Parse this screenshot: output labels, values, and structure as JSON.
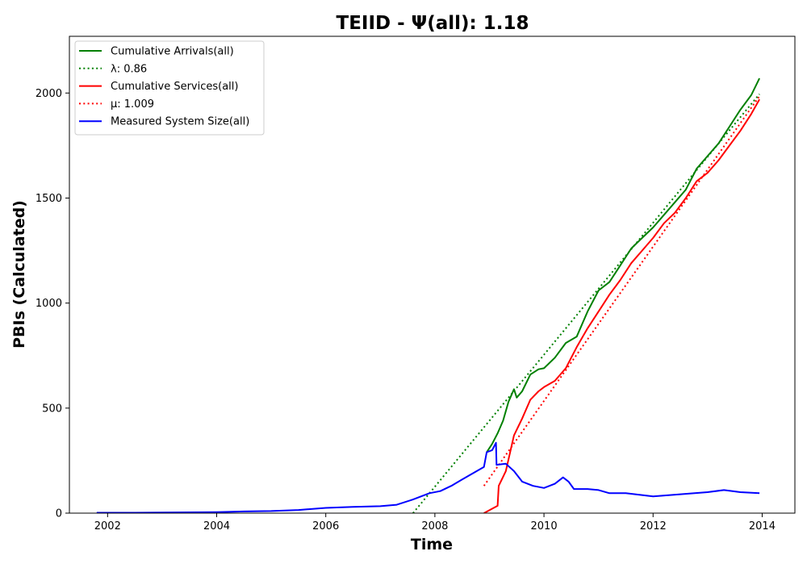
{
  "chart_data": {
    "type": "line",
    "title": "TEIID -  Ψ(all): 1.18",
    "xlabel": "Time",
    "ylabel": "PBIs (Calculated)",
    "xlim": [
      2001.3,
      2014.6
    ],
    "ylim": [
      0,
      2270
    ],
    "x_ticks": [
      2002,
      2004,
      2006,
      2008,
      2010,
      2012,
      2014
    ],
    "x_tick_labels": [
      "2002",
      "2004",
      "2006",
      "2008",
      "2010",
      "2012",
      "2014"
    ],
    "y_ticks": [
      0,
      500,
      1000,
      1500,
      2000
    ],
    "y_tick_labels": [
      "0",
      "500",
      "1000",
      "1500",
      "2000"
    ],
    "grid": false,
    "legend_position": "top-left",
    "series": [
      {
        "name": "Cumulative Arrivals(all)",
        "color": "#008000",
        "style": "solid",
        "points": [
          [
            2008.95,
            290
          ],
          [
            2009.05,
            330
          ],
          [
            2009.15,
            380
          ],
          [
            2009.25,
            440
          ],
          [
            2009.35,
            530
          ],
          [
            2009.45,
            590
          ],
          [
            2009.5,
            550
          ],
          [
            2009.6,
            580
          ],
          [
            2009.75,
            660
          ],
          [
            2009.9,
            685
          ],
          [
            2010.0,
            690
          ],
          [
            2010.2,
            740
          ],
          [
            2010.4,
            810
          ],
          [
            2010.6,
            840
          ],
          [
            2010.8,
            960
          ],
          [
            2011.0,
            1060
          ],
          [
            2011.2,
            1100
          ],
          [
            2011.4,
            1180
          ],
          [
            2011.6,
            1260
          ],
          [
            2011.8,
            1310
          ],
          [
            2012.0,
            1360
          ],
          [
            2012.2,
            1420
          ],
          [
            2012.4,
            1480
          ],
          [
            2012.6,
            1540
          ],
          [
            2012.8,
            1640
          ],
          [
            2013.0,
            1700
          ],
          [
            2013.2,
            1760
          ],
          [
            2013.4,
            1840
          ],
          [
            2013.6,
            1920
          ],
          [
            2013.8,
            1990
          ],
          [
            2013.95,
            2070
          ]
        ]
      },
      {
        "name": "λ: 0.86",
        "color": "#008000",
        "style": "dotted",
        "points": [
          [
            2007.6,
            0
          ],
          [
            2013.95,
            1995
          ]
        ]
      },
      {
        "name": "Cumulative Services(all)",
        "color": "#ff0000",
        "style": "solid",
        "points": [
          [
            2008.9,
            0
          ],
          [
            2009.15,
            35
          ],
          [
            2009.17,
            130
          ],
          [
            2009.3,
            200
          ],
          [
            2009.45,
            370
          ],
          [
            2009.6,
            450
          ],
          [
            2009.75,
            540
          ],
          [
            2009.9,
            580
          ],
          [
            2010.0,
            600
          ],
          [
            2010.2,
            630
          ],
          [
            2010.4,
            690
          ],
          [
            2010.6,
            790
          ],
          [
            2010.8,
            880
          ],
          [
            2011.0,
            960
          ],
          [
            2011.2,
            1040
          ],
          [
            2011.4,
            1110
          ],
          [
            2011.6,
            1190
          ],
          [
            2011.8,
            1250
          ],
          [
            2012.0,
            1310
          ],
          [
            2012.2,
            1380
          ],
          [
            2012.4,
            1430
          ],
          [
            2012.6,
            1500
          ],
          [
            2012.8,
            1580
          ],
          [
            2013.0,
            1620
          ],
          [
            2013.2,
            1680
          ],
          [
            2013.4,
            1750
          ],
          [
            2013.6,
            1820
          ],
          [
            2013.8,
            1900
          ],
          [
            2013.95,
            1970
          ]
        ]
      },
      {
        "name": "μ: 1.009",
        "color": "#ff0000",
        "style": "dotted",
        "points": [
          [
            2008.9,
            130
          ],
          [
            2013.95,
            1985
          ]
        ]
      },
      {
        "name": "Measured System Size(all)",
        "color": "#0000ff",
        "style": "solid",
        "points": [
          [
            2001.8,
            2
          ],
          [
            2002.5,
            2
          ],
          [
            2003.0,
            3
          ],
          [
            2003.5,
            4
          ],
          [
            2004.0,
            5
          ],
          [
            2004.5,
            8
          ],
          [
            2005.0,
            10
          ],
          [
            2005.5,
            15
          ],
          [
            2006.0,
            25
          ],
          [
            2006.5,
            30
          ],
          [
            2007.0,
            33
          ],
          [
            2007.3,
            40
          ],
          [
            2007.6,
            65
          ],
          [
            2007.9,
            95
          ],
          [
            2008.1,
            105
          ],
          [
            2008.3,
            130
          ],
          [
            2008.5,
            160
          ],
          [
            2008.7,
            190
          ],
          [
            2008.9,
            220
          ],
          [
            2008.95,
            290
          ],
          [
            2009.05,
            300
          ],
          [
            2009.12,
            335
          ],
          [
            2009.13,
            230
          ],
          [
            2009.3,
            235
          ],
          [
            2009.45,
            200
          ],
          [
            2009.6,
            150
          ],
          [
            2009.8,
            130
          ],
          [
            2010.0,
            120
          ],
          [
            2010.2,
            140
          ],
          [
            2010.35,
            170
          ],
          [
            2010.45,
            150
          ],
          [
            2010.55,
            115
          ],
          [
            2010.8,
            115
          ],
          [
            2011.0,
            110
          ],
          [
            2011.2,
            95
          ],
          [
            2011.5,
            95
          ],
          [
            2012.0,
            80
          ],
          [
            2012.5,
            90
          ],
          [
            2013.0,
            100
          ],
          [
            2013.3,
            110
          ],
          [
            2013.6,
            100
          ],
          [
            2013.95,
            95
          ]
        ]
      }
    ]
  }
}
